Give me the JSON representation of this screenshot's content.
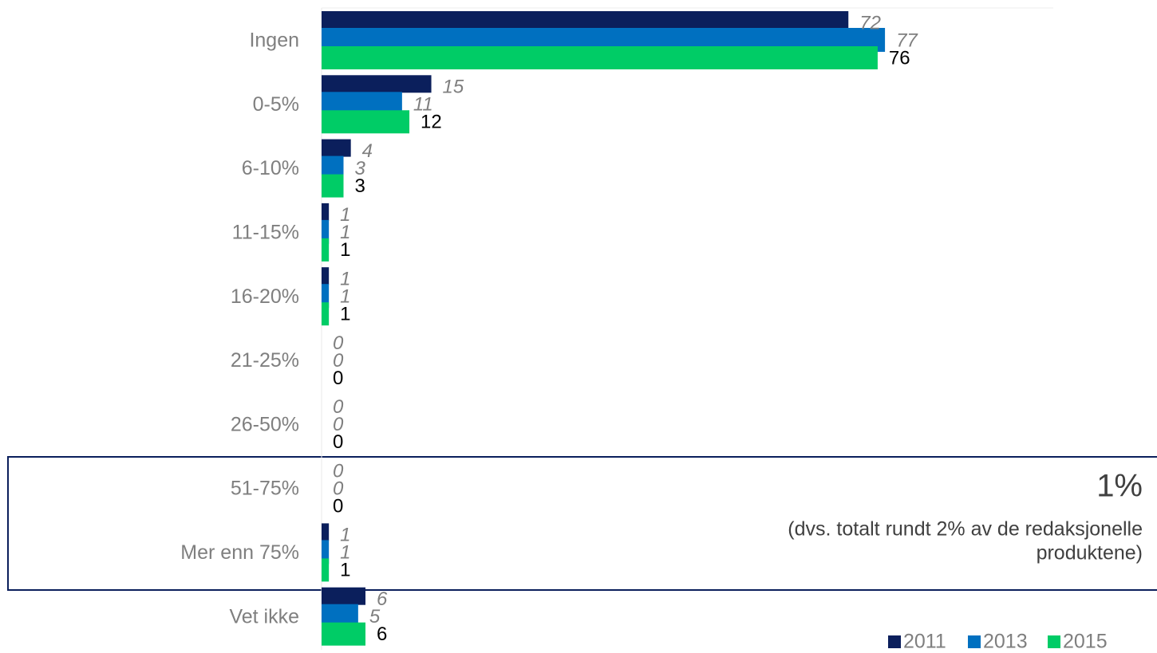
{
  "chart_data": {
    "type": "barh",
    "categories": [
      "Ingen",
      "0-5%",
      "6-10%",
      "11-15%",
      "16-20%",
      "21-25%",
      "26-50%",
      "51-75%",
      "Mer enn 75%",
      "Vet ikke"
    ],
    "series": [
      {
        "name": "2011",
        "color": "#0b1f5c",
        "values": [
          72,
          15,
          4,
          1,
          1,
          0,
          0,
          0,
          1,
          6
        ]
      },
      {
        "name": "2013",
        "color": "#0070c0",
        "values": [
          77,
          11,
          3,
          1,
          1,
          0,
          0,
          0,
          1,
          5
        ]
      },
      {
        "name": "2015",
        "color": "#00cc66",
        "values": [
          76,
          12,
          3,
          1,
          1,
          0,
          0,
          0,
          1,
          6
        ]
      }
    ],
    "xlim": [
      0,
      100
    ],
    "legend": "bottom-right",
    "annotations": [
      "1%",
      "(dvs. totalt rundt 2% av de redaksjonelle",
      "produktene)"
    ]
  }
}
